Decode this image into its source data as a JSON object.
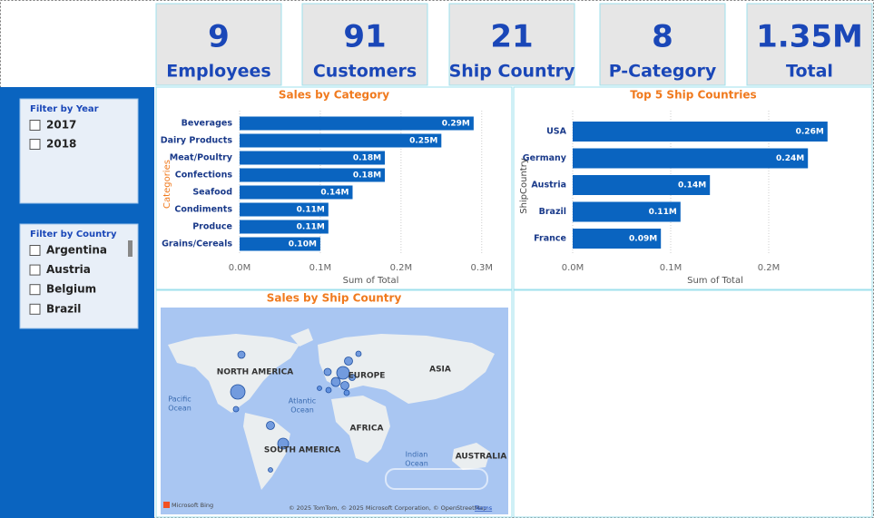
{
  "kpis": [
    {
      "value": 9,
      "label": "Employees"
    },
    {
      "value": 91,
      "label": "Customers"
    },
    {
      "value": 21,
      "label": "Ship Country"
    },
    {
      "value": 8,
      "label": "P-Category"
    },
    {
      "value": 1350000,
      "value_label": "1.35M",
      "label": "Total"
    }
  ],
  "filters": [
    {
      "title": "Filter by Year",
      "options": [
        "2017",
        "2018"
      ]
    },
    {
      "title": "Filter by Country",
      "options": [
        "Argentina",
        "Austria",
        "Belgium",
        "Brazil"
      ]
    }
  ],
  "chart_data": [
    {
      "type": "bar",
      "title": "Sales by Category",
      "categories": [
        "Beverages",
        "Dairy Products",
        "Meat/Poultry",
        "Confections",
        "Seafood",
        "Condiments",
        "Produce",
        "Grains/Cereals"
      ],
      "values": [
        0.29,
        0.25,
        0.18,
        0.18,
        0.14,
        0.11,
        0.11,
        0.1
      ],
      "value_labels": [
        "0.29M",
        "0.25M",
        "0.18M",
        "0.18M",
        "0.14M",
        "0.11M",
        "0.11M",
        "0.10M"
      ],
      "color": "#0a64c0",
      "xlim": [
        0,
        0.325
      ],
      "xticks": [
        {
          "value": 0,
          "label": "0.0M"
        },
        {
          "value": 0.1,
          "label": "0.1M"
        },
        {
          "value": 0.2,
          "label": "0.2M"
        },
        {
          "value": 0.3,
          "label": "0.3M"
        }
      ],
      "xlabel": "Sum of Total",
      "ylabel": "Categories",
      "grid": true
    },
    {
      "type": "bar",
      "title": "Top 5 Ship Countries",
      "categories": [
        "USA",
        "Germany",
        "Austria",
        "Brazil",
        "France"
      ],
      "values": [
        0.26,
        0.24,
        0.14,
        0.11,
        0.09
      ],
      "value_labels": [
        "0.26M",
        "0.24M",
        "0.14M",
        "0.11M",
        "0.09M"
      ],
      "color": "#0a64c0",
      "xlim": [
        0,
        0.3
      ],
      "xticks": [
        {
          "value": 0,
          "label": "0.0M"
        },
        {
          "value": 0.1,
          "label": "0.1M"
        },
        {
          "value": 0.2,
          "label": "0.2M"
        }
      ],
      "xlabel": "Sum of Total",
      "ylabel": "ShipCountry",
      "grid": true
    },
    {
      "type": "map",
      "title": "Sales by Ship Country",
      "regions": [
        "NORTH AMERICA",
        "EUROPE",
        "ASIA",
        "AFRICA",
        "SOUTH AMERICA",
        "AUSTRALIA"
      ],
      "oceans": [
        [
          "Pacific",
          "Ocean"
        ],
        [
          "Atlantic",
          "Ocean"
        ],
        [
          "Indian",
          "Ocean"
        ]
      ],
      "brand": "Microsoft Bing",
      "attribution": "© 2025 TomTom, © 2025 Microsoft Corporation, © OpenStreetMap",
      "terms": "Terms"
    }
  ]
}
